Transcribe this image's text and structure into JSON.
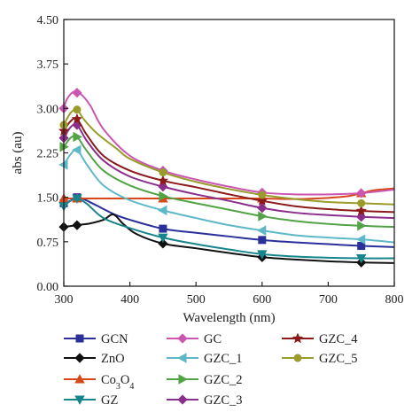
{
  "chart_data": {
    "type": "line",
    "xlabel": "Wavelength (nm)",
    "ylabel": "abs (au)",
    "xlim": [
      300,
      800
    ],
    "ylim": [
      0.0,
      4.5
    ],
    "xticks": [
      "300",
      "400",
      "500",
      "600",
      "700",
      "800"
    ],
    "yticks": [
      "0.00",
      "0.75",
      "1.50",
      "2.25",
      "3.00",
      "3.75",
      "4.50"
    ],
    "grid": false,
    "legend_position": "below plot, three columns",
    "series": [
      {
        "name": "GCN",
        "color": "#2b2f9a",
        "marker": "square",
        "x": [
          300,
          310,
          320,
          330,
          350,
          375,
          400,
          450,
          500,
          550,
          600,
          650,
          700,
          750,
          800
        ],
        "y": [
          1.4,
          1.44,
          1.5,
          1.47,
          1.36,
          1.22,
          1.12,
          0.97,
          0.9,
          0.84,
          0.78,
          0.74,
          0.71,
          0.68,
          0.66
        ]
      },
      {
        "name": "ZnO",
        "color": "#111111",
        "marker": "diamond",
        "x": [
          300,
          320,
          340,
          360,
          375,
          390,
          410,
          450,
          500,
          550,
          600,
          650,
          700,
          750,
          800
        ],
        "y": [
          1.0,
          1.03,
          1.06,
          1.12,
          1.21,
          1.05,
          0.88,
          0.72,
          0.64,
          0.56,
          0.49,
          0.45,
          0.42,
          0.4,
          0.39
        ]
      },
      {
        "name": "Co3O4",
        "color": "#d9481c",
        "marker": "triangle-up",
        "x": [
          300,
          350,
          400,
          450,
          500,
          550,
          600,
          650,
          700,
          730,
          750,
          770,
          800
        ],
        "y": [
          1.48,
          1.48,
          1.48,
          1.48,
          1.48,
          1.48,
          1.48,
          1.47,
          1.49,
          1.52,
          1.57,
          1.62,
          1.65
        ]
      },
      {
        "name": "GZ",
        "color": "#16858c",
        "marker": "triangle-down",
        "x": [
          300,
          310,
          320,
          335,
          360,
          400,
          450,
          500,
          550,
          600,
          650,
          700,
          750,
          800
        ],
        "y": [
          1.35,
          1.44,
          1.48,
          1.39,
          1.15,
          0.98,
          0.82,
          0.71,
          0.62,
          0.54,
          0.5,
          0.48,
          0.47,
          0.47
        ]
      },
      {
        "name": "GC",
        "color": "#cc55b2",
        "marker": "diamond",
        "x": [
          300,
          305,
          315,
          325,
          340,
          360,
          400,
          450,
          500,
          550,
          600,
          650,
          700,
          750,
          800
        ],
        "y": [
          3.0,
          3.16,
          3.28,
          3.25,
          3.05,
          2.65,
          2.2,
          1.95,
          1.8,
          1.68,
          1.58,
          1.55,
          1.55,
          1.57,
          1.63
        ]
      },
      {
        "name": "GZC_1",
        "color": "#5fb8c8",
        "marker": "triangle-left",
        "x": [
          300,
          310,
          320,
          335,
          360,
          400,
          450,
          500,
          550,
          600,
          650,
          700,
          750,
          800
        ],
        "y": [
          2.05,
          2.22,
          2.3,
          2.05,
          1.7,
          1.45,
          1.28,
          1.15,
          1.03,
          0.94,
          0.86,
          0.82,
          0.79,
          0.74
        ]
      },
      {
        "name": "GZC_2",
        "color": "#52a345",
        "marker": "triangle-right",
        "x": [
          300,
          310,
          320,
          335,
          360,
          400,
          450,
          500,
          550,
          600,
          650,
          700,
          750,
          800
        ],
        "y": [
          2.35,
          2.5,
          2.52,
          2.28,
          1.95,
          1.7,
          1.52,
          1.4,
          1.29,
          1.18,
          1.1,
          1.05,
          1.02,
          1.0
        ]
      },
      {
        "name": "GZC_3",
        "color": "#8a2e8c",
        "marker": "diamond",
        "x": [
          300,
          310,
          320,
          335,
          360,
          400,
          450,
          500,
          550,
          600,
          650,
          700,
          750,
          800
        ],
        "y": [
          2.5,
          2.68,
          2.72,
          2.45,
          2.12,
          1.85,
          1.68,
          1.55,
          1.44,
          1.32,
          1.24,
          1.2,
          1.17,
          1.15
        ]
      },
      {
        "name": "GZC_4",
        "color": "#8b1a1a",
        "marker": "star",
        "x": [
          300,
          310,
          320,
          335,
          360,
          400,
          450,
          500,
          550,
          600,
          650,
          700,
          750,
          800
        ],
        "y": [
          2.62,
          2.78,
          2.82,
          2.55,
          2.2,
          1.95,
          1.78,
          1.67,
          1.55,
          1.44,
          1.35,
          1.3,
          1.27,
          1.25
        ]
      },
      {
        "name": "GZC_5",
        "color": "#999b2a",
        "marker": "circle",
        "x": [
          300,
          310,
          320,
          330,
          350,
          380,
          400,
          450,
          500,
          550,
          600,
          650,
          700,
          750,
          800
        ],
        "y": [
          2.72,
          2.92,
          2.98,
          2.82,
          2.58,
          2.32,
          2.15,
          1.92,
          1.76,
          1.64,
          1.54,
          1.47,
          1.42,
          1.4,
          1.38
        ]
      }
    ]
  }
}
